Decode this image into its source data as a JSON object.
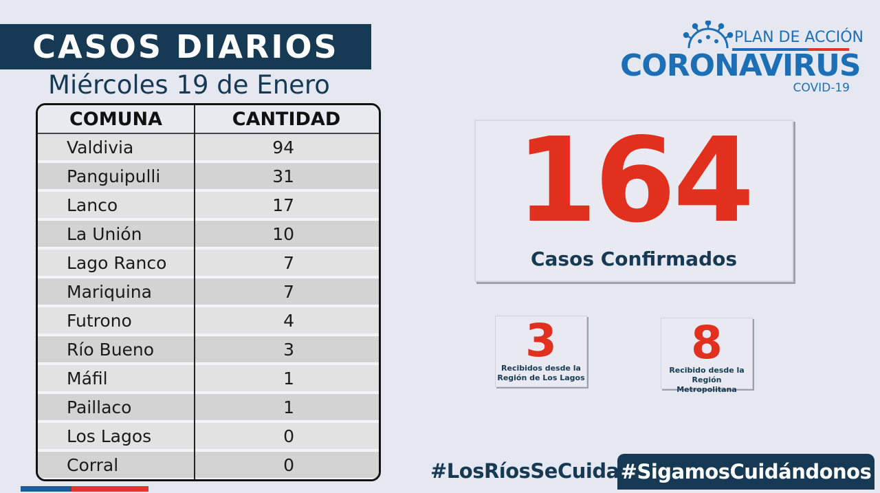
{
  "header": {
    "title": "CASOS DIARIOS",
    "date": "Miércoles 19 de Enero"
  },
  "table": {
    "headers": [
      "COMUNA",
      "CANTIDAD"
    ],
    "rows": [
      {
        "comuna": "Valdivia",
        "cantidad": "94"
      },
      {
        "comuna": "Panguipulli",
        "cantidad": "31"
      },
      {
        "comuna": "Lanco",
        "cantidad": "17"
      },
      {
        "comuna": "La Unión",
        "cantidad": "10"
      },
      {
        "comuna": "Lago Ranco",
        "cantidad": "7"
      },
      {
        "comuna": "Mariquina",
        "cantidad": "7"
      },
      {
        "comuna": "Futrono",
        "cantidad": "4"
      },
      {
        "comuna": "Río Bueno",
        "cantidad": "3"
      },
      {
        "comuna": "Máfil",
        "cantidad": "1"
      },
      {
        "comuna": "Paillaco",
        "cantidad": "1"
      },
      {
        "comuna": "Los Lagos",
        "cantidad": "0"
      },
      {
        "comuna": "Corral",
        "cantidad": "0"
      }
    ]
  },
  "logo": {
    "plan": "PLAN DE ACCIÓN",
    "name": "CORONAVIRUS",
    "sub": "COVID-19"
  },
  "summary": {
    "total": "164",
    "total_label": "Casos Confirmados",
    "los_lagos_count": "3",
    "los_lagos_label_1": "Recibidos  desde la",
    "los_lagos_label_2": "Región de Los Lagos",
    "metro_count": "8",
    "metro_label_1": "Recibido desde  la",
    "metro_label_2": "Región Metropolitana"
  },
  "hashtags": {
    "tag1": "#LosRíosSeCuida",
    "tag2": "#SigamosCuidándonos"
  },
  "colors": {
    "navy": "#163a54",
    "blue": "#1c6fb5",
    "red": "#e2301e"
  }
}
